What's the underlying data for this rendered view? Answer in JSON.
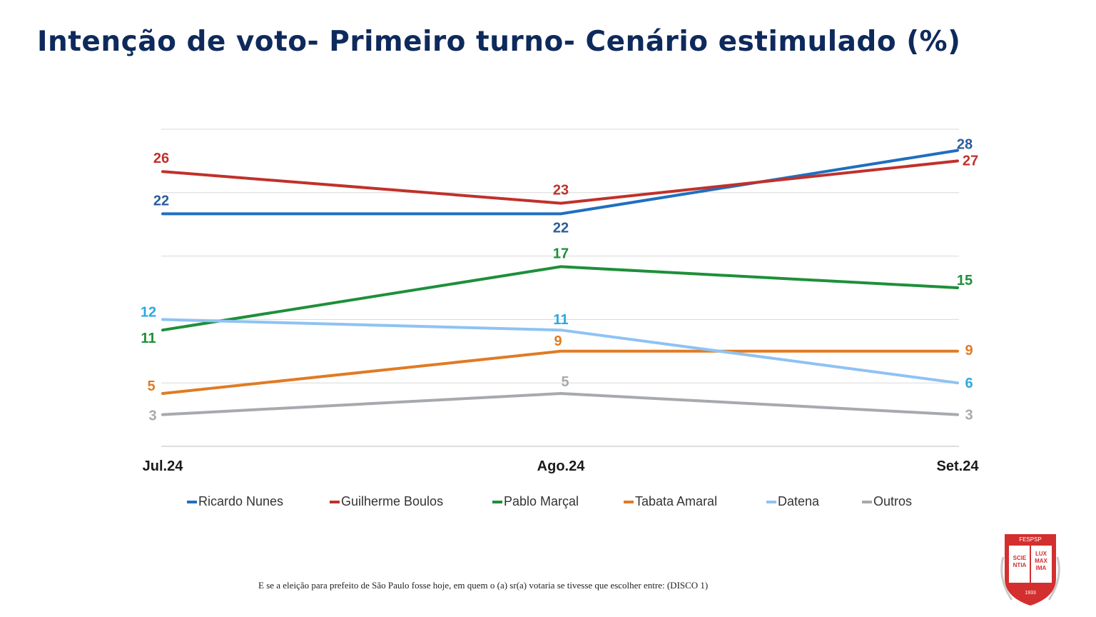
{
  "title": "Intenção de voto- Primeiro turno- Cenário estimulado (%)",
  "footnote": "E se a eleição para prefeito de São Paulo fosse hoje, em quem o (a) sr(a) votaria se tivesse que escolher entre: (DISCO 1)",
  "logo": {
    "top_text": "FESPSP",
    "left_text_1": "SCIE",
    "left_text_2": "NTIA",
    "right_text_1": "LUX",
    "right_text_2": "MAX",
    "right_text_3": "IMA",
    "year": "1933",
    "color": "#d32f2f"
  },
  "chart_data": {
    "type": "line",
    "title": "Intenção de voto- Primeiro turno- Cenário estimulado (%)",
    "xlabel": "",
    "ylabel": "",
    "categories": [
      "Jul.24",
      "Ago.24",
      "Set.24"
    ],
    "ylim": [
      0,
      30
    ],
    "grid": true,
    "legend_position": "bottom",
    "series": [
      {
        "name": "Ricardo Nunes",
        "values": [
          22,
          22,
          28
        ],
        "color": "#1f6fc0",
        "label_color": "#2a5d9b"
      },
      {
        "name": "Guilherme Boulos",
        "values": [
          26,
          23,
          27
        ],
        "color": "#c0312b",
        "label_color": "#c0312b"
      },
      {
        "name": "Pablo Marçal",
        "values": [
          11,
          17,
          15
        ],
        "color": "#1e8f3a",
        "label_color": "#1e8f3a"
      },
      {
        "name": "Tabata Amaral",
        "values": [
          5,
          9,
          9
        ],
        "color": "#e07b24",
        "label_color": "#e07b24"
      },
      {
        "name": "Datena",
        "values": [
          12,
          11,
          6
        ],
        "color": "#8ec3f2",
        "label_color": "#2aa9e0"
      },
      {
        "name": "Outros",
        "values": [
          3,
          5,
          3
        ],
        "color": "#a6a9ad",
        "label_color": "#a6a9ad"
      }
    ]
  }
}
